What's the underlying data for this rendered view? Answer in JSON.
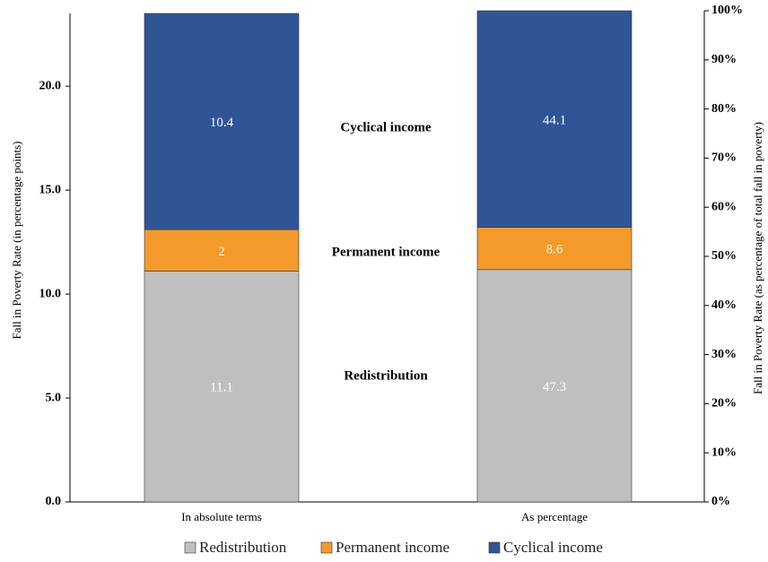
{
  "chart_data": {
    "type": "bar",
    "stacked": true,
    "categories": [
      "In absolute terms",
      "As percentage"
    ],
    "category_axes": [
      "y",
      "y2"
    ],
    "series": [
      {
        "name": "Redistribution",
        "color": "#c0c0c0",
        "values": [
          11.1,
          47.3
        ]
      },
      {
        "name": "Permanent income",
        "color": "#f39a2b",
        "values": [
          2.0,
          8.6
        ]
      },
      {
        "name": "Cyclical income",
        "color": "#2f5597",
        "values": [
          10.4,
          44.1
        ]
      }
    ],
    "ylabel": "Fall in Poverty Rate (in percentage points)",
    "y2label": "Fall in Poverty Rate (as percentage of total fall in poverty)",
    "ylim": [
      0,
      23.5
    ],
    "yticks": [
      {
        "value": 0,
        "label": "0.0"
      },
      {
        "value": 5,
        "label": "5.0"
      },
      {
        "value": 10,
        "label": "10.0"
      },
      {
        "value": 15,
        "label": "15.0"
      },
      {
        "value": 20,
        "label": "20.0"
      }
    ],
    "y2lim": [
      0,
      100
    ],
    "y2ticks": [
      {
        "value": 0,
        "label": "0%"
      },
      {
        "value": 10,
        "label": "10%"
      },
      {
        "value": 20,
        "label": "20%"
      },
      {
        "value": 30,
        "label": "30%"
      },
      {
        "value": 40,
        "label": "40%"
      },
      {
        "value": 50,
        "label": "50%"
      },
      {
        "value": 60,
        "label": "60%"
      },
      {
        "value": 70,
        "label": "70%"
      },
      {
        "value": 80,
        "label": "80%"
      },
      {
        "value": 90,
        "label": "90%"
      },
      {
        "value": 100,
        "label": "100%"
      }
    ],
    "annotations": [
      "Redistribution",
      "Permanent income",
      "Cyclical income"
    ],
    "legend": "bottom"
  }
}
